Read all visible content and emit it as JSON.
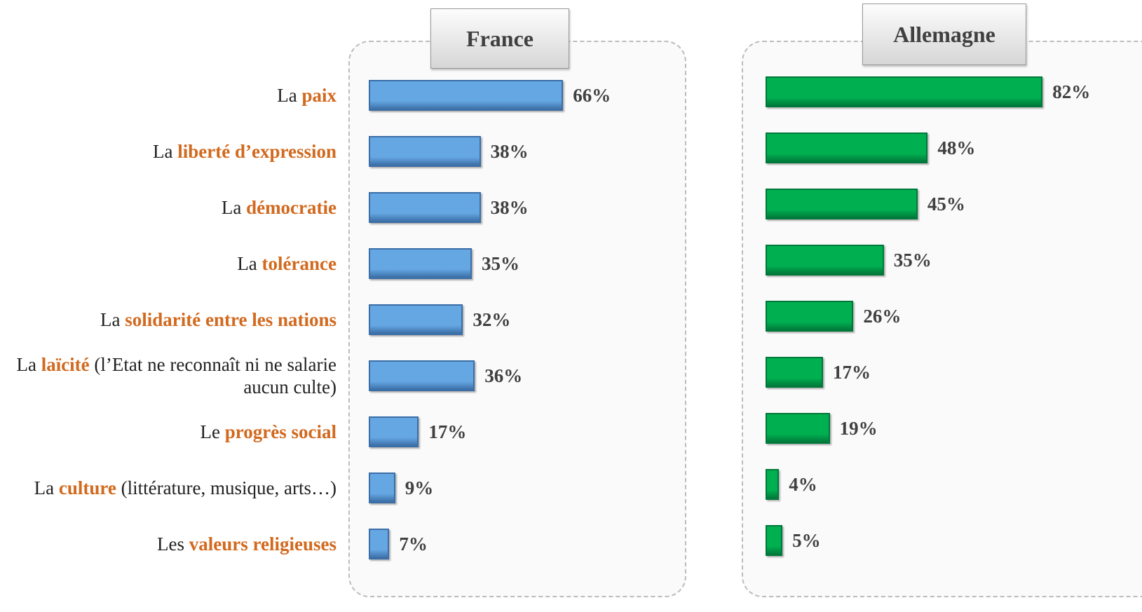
{
  "chart_data": {
    "type": "bar",
    "orientation": "horizontal",
    "categories": [
      {
        "lead": "La",
        "key": "paix"
      },
      {
        "lead": "La",
        "key": "liberté d’expression"
      },
      {
        "lead": "La",
        "key": "démocratie"
      },
      {
        "lead": "La",
        "key": "tolérance"
      },
      {
        "lead": "La",
        "key": "solidarité entre les nations"
      },
      {
        "lead": "La",
        "key": "laïcité",
        "rest": "(l’Etat ne reconnaît ni ne salarie aucun culte)"
      },
      {
        "lead": "Le",
        "key": "progrès social"
      },
      {
        "lead": "La",
        "key": "culture",
        "rest": "(littérature, musique, arts…)"
      },
      {
        "lead": "Les",
        "key": "valeurs religieuses"
      }
    ],
    "series": [
      {
        "name": "France",
        "color": "#65a7e3",
        "border": "#3b6ea6",
        "values": [
          66,
          38,
          38,
          35,
          32,
          36,
          17,
          9,
          7
        ],
        "value_labels": [
          "66%",
          "38%",
          "38%",
          "35%",
          "32%",
          "36%",
          "17%",
          "9%",
          "7%"
        ]
      },
      {
        "name": "Allemagne",
        "color": "#00b050",
        "border": "#00783a",
        "values": [
          82,
          48,
          45,
          35,
          26,
          17,
          19,
          4,
          5
        ],
        "value_labels": [
          "82%",
          "48%",
          "45%",
          "35%",
          "26%",
          "17%",
          "19%",
          "4%",
          "5%"
        ]
      }
    ]
  }
}
